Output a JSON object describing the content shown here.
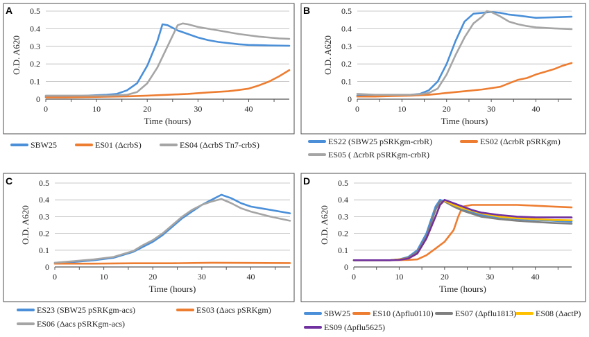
{
  "chart_data": [
    {
      "type": "line",
      "panel": "A",
      "xlabel": "Time (hours)",
      "ylabel": "O.D. A620",
      "xlim": [
        0,
        48
      ],
      "ylim": [
        0,
        0.5
      ],
      "xticks": [
        0,
        10,
        20,
        30,
        40
      ],
      "yticks": [
        0,
        0.1,
        0.2,
        0.3,
        0.4,
        0.5
      ],
      "grid": true,
      "legend": "bottom",
      "series": [
        {
          "name": "SBW25",
          "color": "#4a8fd8",
          "x": [
            0,
            4,
            8,
            12,
            14,
            16,
            18,
            20,
            22,
            23,
            24,
            26,
            28,
            30,
            32,
            34,
            36,
            38,
            40,
            44,
            48
          ],
          "y": [
            0.015,
            0.015,
            0.02,
            0.025,
            0.03,
            0.05,
            0.09,
            0.19,
            0.33,
            0.425,
            0.42,
            0.39,
            0.37,
            0.35,
            0.335,
            0.325,
            0.318,
            0.312,
            0.308,
            0.305,
            0.303
          ]
        },
        {
          "name": "ES01 (ΔcrbS)",
          "color": "#ed7d31",
          "x": [
            0,
            4,
            8,
            12,
            16,
            20,
            24,
            28,
            32,
            36,
            38,
            40,
            42,
            44,
            46,
            48
          ],
          "y": [
            0.01,
            0.01,
            0.012,
            0.014,
            0.016,
            0.02,
            0.025,
            0.03,
            0.038,
            0.045,
            0.052,
            0.06,
            0.078,
            0.1,
            0.13,
            0.165
          ]
        },
        {
          "name": "ES04 (ΔcrbS Tn7-crbS)",
          "color": "#a5a5a5",
          "x": [
            0,
            4,
            8,
            12,
            14,
            16,
            18,
            20,
            22,
            24,
            26,
            27,
            28,
            30,
            34,
            38,
            42,
            46,
            48
          ],
          "y": [
            0.02,
            0.02,
            0.02,
            0.02,
            0.022,
            0.025,
            0.04,
            0.09,
            0.18,
            0.3,
            0.42,
            0.43,
            0.425,
            0.41,
            0.39,
            0.37,
            0.355,
            0.345,
            0.342
          ]
        }
      ],
      "legend_items": [
        {
          "label": "SBW25",
          "color": "#4a8fd8"
        },
        {
          "label": "ES01 (ΔcrbS)",
          "color": "#ed7d31"
        },
        {
          "label": "ES04 (ΔcrbS Tn7-crbS)",
          "color": "#a5a5a5"
        }
      ]
    },
    {
      "type": "line",
      "panel": "B",
      "xlabel": "Time (hours)",
      "ylabel": "O.D. A620",
      "xlim": [
        0,
        48
      ],
      "ylim": [
        0,
        0.5
      ],
      "xticks": [
        0,
        10,
        20,
        30,
        40
      ],
      "yticks": [
        0,
        0.1,
        0.2,
        0.3,
        0.4,
        0.5
      ],
      "grid": true,
      "legend": "bottom",
      "series": [
        {
          "name": "ES22 (SBW25 pSRKgm-crbR)",
          "color": "#4a8fd8",
          "x": [
            0,
            4,
            8,
            12,
            14,
            16,
            18,
            20,
            22,
            24,
            26,
            28,
            30,
            32,
            34,
            36,
            38,
            40,
            44,
            48
          ],
          "y": [
            0.02,
            0.02,
            0.022,
            0.025,
            0.03,
            0.05,
            0.1,
            0.2,
            0.33,
            0.44,
            0.485,
            0.49,
            0.495,
            0.49,
            0.48,
            0.475,
            0.468,
            0.462,
            0.465,
            0.468
          ]
        },
        {
          "name": "ES02 (ΔcrbR pSRKgm)",
          "color": "#ed7d31",
          "x": [
            0,
            4,
            8,
            12,
            16,
            20,
            24,
            28,
            32,
            34,
            36,
            38,
            40,
            42,
            44,
            46,
            48
          ],
          "y": [
            0.015,
            0.015,
            0.018,
            0.02,
            0.025,
            0.035,
            0.045,
            0.055,
            0.07,
            0.09,
            0.11,
            0.12,
            0.14,
            0.155,
            0.17,
            0.19,
            0.205
          ]
        },
        {
          "name": "ES05 ( ΔcrbR pSRKgm-crbR)",
          "color": "#a5a5a5",
          "x": [
            0,
            4,
            8,
            12,
            14,
            16,
            18,
            20,
            22,
            24,
            26,
            28,
            29,
            30,
            32,
            34,
            36,
            38,
            40,
            44,
            48
          ],
          "y": [
            0.03,
            0.025,
            0.025,
            0.025,
            0.028,
            0.035,
            0.06,
            0.14,
            0.25,
            0.35,
            0.43,
            0.47,
            0.5,
            0.495,
            0.47,
            0.44,
            0.425,
            0.415,
            0.408,
            0.402,
            0.398
          ]
        }
      ],
      "legend_items": [
        {
          "label": "ES22 (SBW25 pSRKgm-crbR)",
          "color": "#4a8fd8"
        },
        {
          "label": "ES02 (ΔcrbR pSRKgm)",
          "color": "#ed7d31"
        },
        {
          "label": "ES05 ( ΔcrbR pSRKgm-crbR)",
          "color": "#a5a5a5"
        }
      ]
    },
    {
      "type": "line",
      "panel": "C",
      "xlabel": "Time (hours)",
      "ylabel": "O.D. A620",
      "xlim": [
        0,
        48
      ],
      "ylim": [
        0,
        0.5
      ],
      "xticks": [
        0,
        10,
        20,
        30,
        40
      ],
      "yticks": [
        0,
        0.1,
        0.2,
        0.3,
        0.4,
        0.5
      ],
      "grid": true,
      "legend": "bottom",
      "series": [
        {
          "name": "ES23 (SBW25 pSRKgm-acs)",
          "color": "#4a8fd8",
          "x": [
            0,
            4,
            8,
            12,
            16,
            18,
            20,
            22,
            24,
            26,
            28,
            30,
            32,
            34,
            36,
            38,
            40,
            44,
            48
          ],
          "y": [
            0.025,
            0.03,
            0.04,
            0.055,
            0.09,
            0.12,
            0.15,
            0.19,
            0.24,
            0.29,
            0.33,
            0.37,
            0.4,
            0.43,
            0.41,
            0.38,
            0.36,
            0.34,
            0.32
          ]
        },
        {
          "name": "ES03 (Δacs pSRKgm)",
          "color": "#ed7d31",
          "x": [
            0,
            8,
            16,
            24,
            32,
            40,
            48
          ],
          "y": [
            0.02,
            0.02,
            0.022,
            0.022,
            0.025,
            0.024,
            0.023
          ]
        },
        {
          "name": "ES06 (Δacs pSRKgm-acs)",
          "color": "#a5a5a5",
          "x": [
            0,
            4,
            8,
            12,
            16,
            18,
            20,
            22,
            24,
            26,
            28,
            30,
            32,
            34,
            36,
            38,
            40,
            44,
            48
          ],
          "y": [
            0.025,
            0.035,
            0.045,
            0.06,
            0.095,
            0.13,
            0.16,
            0.2,
            0.25,
            0.3,
            0.34,
            0.37,
            0.39,
            0.405,
            0.38,
            0.35,
            0.33,
            0.3,
            0.275
          ]
        }
      ],
      "legend_items": [
        {
          "label": "ES23 (SBW25 pSRKgm-acs)",
          "color": "#4a8fd8"
        },
        {
          "label": "ES03 (Δacs pSRKgm)",
          "color": "#ed7d31"
        },
        {
          "label": "ES06 (Δacs pSRKgm-acs)",
          "color": "#a5a5a5"
        }
      ]
    },
    {
      "type": "line",
      "panel": "D",
      "xlabel": "Time (hours)",
      "ylabel": "O.D. A620",
      "xlim": [
        0,
        48
      ],
      "ylim": [
        0,
        0.5
      ],
      "xticks": [
        0,
        10,
        20,
        30,
        40
      ],
      "yticks": [
        0,
        0.1,
        0.2,
        0.3,
        0.4,
        0.5
      ],
      "grid": true,
      "legend": "bottom",
      "series": [
        {
          "name": "SBW25",
          "color": "#4a8fd8",
          "x": [
            0,
            4,
            8,
            10,
            12,
            14,
            16,
            17,
            18,
            19,
            20,
            22,
            24,
            28,
            32,
            36,
            40,
            44,
            48
          ],
          "y": [
            0.04,
            0.04,
            0.04,
            0.045,
            0.06,
            0.1,
            0.2,
            0.28,
            0.36,
            0.4,
            0.39,
            0.36,
            0.34,
            0.31,
            0.295,
            0.285,
            0.28,
            0.275,
            0.27
          ]
        },
        {
          "name": "ES10 (Δpflu0110)",
          "color": "#ed7d31",
          "x": [
            0,
            4,
            8,
            12,
            14,
            16,
            18,
            20,
            22,
            23,
            24,
            26,
            28,
            32,
            36,
            40,
            44,
            48
          ],
          "y": [
            0.04,
            0.04,
            0.04,
            0.042,
            0.045,
            0.07,
            0.11,
            0.15,
            0.22,
            0.3,
            0.36,
            0.37,
            0.37,
            0.37,
            0.37,
            0.365,
            0.36,
            0.355
          ]
        },
        {
          "name": "ES07 (Δpflu1813)",
          "color": "#7f7f7f",
          "x": [
            0,
            4,
            8,
            10,
            12,
            14,
            16,
            17,
            18,
            19,
            20,
            22,
            24,
            28,
            32,
            36,
            40,
            44,
            48
          ],
          "y": [
            0.04,
            0.04,
            0.04,
            0.045,
            0.055,
            0.09,
            0.18,
            0.26,
            0.34,
            0.39,
            0.39,
            0.36,
            0.335,
            0.3,
            0.285,
            0.275,
            0.268,
            0.262,
            0.258
          ]
        },
        {
          "name": "ES08 (ΔactP)",
          "color": "#ffc000",
          "x": [
            0,
            4,
            8,
            12,
            14,
            16,
            18,
            19,
            20,
            22,
            24,
            28,
            32,
            36,
            40,
            44,
            48
          ],
          "y": [
            0.04,
            0.04,
            0.04,
            0.05,
            0.08,
            0.17,
            0.3,
            0.37,
            0.395,
            0.37,
            0.35,
            0.32,
            0.3,
            0.29,
            0.285,
            0.28,
            0.278
          ]
        },
        {
          "name": "ES09 (Δpflu5625)",
          "color": "#7030a0",
          "x": [
            0,
            4,
            8,
            10,
            12,
            14,
            16,
            18,
            19,
            20,
            22,
            24,
            26,
            28,
            32,
            36,
            40,
            44,
            48
          ],
          "y": [
            0.04,
            0.04,
            0.04,
            0.042,
            0.05,
            0.08,
            0.17,
            0.3,
            0.37,
            0.4,
            0.38,
            0.36,
            0.34,
            0.325,
            0.31,
            0.3,
            0.296,
            0.295,
            0.295
          ]
        }
      ],
      "legend_items": [
        {
          "label": "SBW25",
          "color": "#4a8fd8"
        },
        {
          "label": "ES10 (Δpflu0110)",
          "color": "#ed7d31"
        },
        {
          "label": "ES07 (Δpflu1813)",
          "color": "#7f7f7f"
        },
        {
          "label": "ES08 (ΔactP)",
          "color": "#ffc000"
        },
        {
          "label": "ES09 (Δpflu5625)",
          "color": "#7030a0"
        }
      ]
    }
  ]
}
